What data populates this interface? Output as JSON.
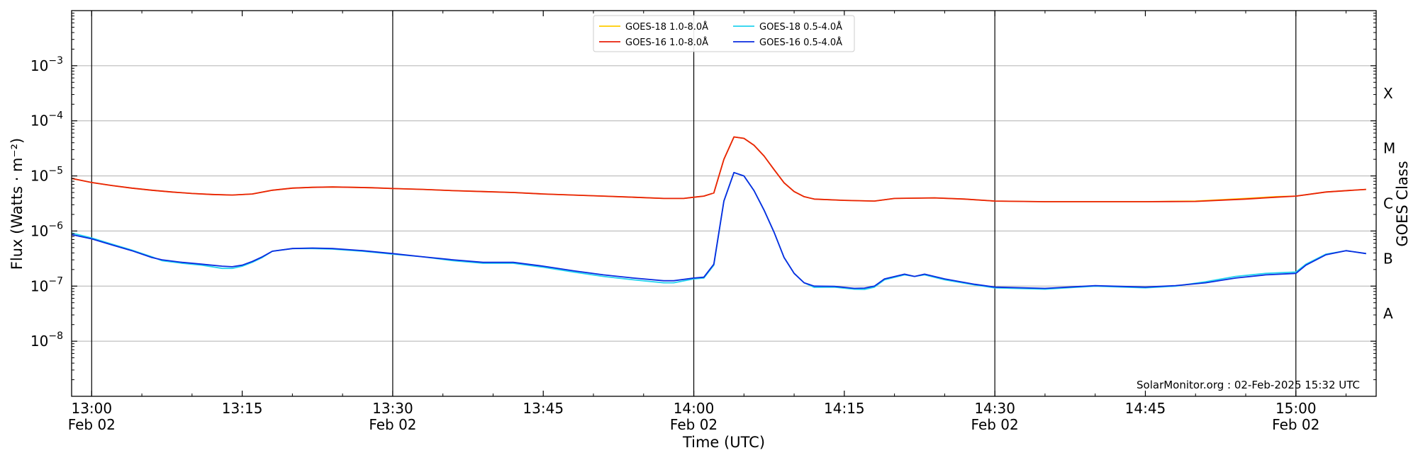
{
  "chart_data": {
    "type": "line",
    "title": "",
    "xlabel": "Time (UTC)",
    "ylabel": "Flux (Watts · m⁻²)",
    "y2label": "GOES Class",
    "yscale": "log",
    "ylim": [
      1e-09,
      0.01
    ],
    "xlim": [
      "12:58",
      "15:08"
    ],
    "grid": "horizontal",
    "legend_placement": "top-center",
    "x_ticks": [
      {
        "time": "13:00",
        "line1": "13:00",
        "line2": "Feb 02"
      },
      {
        "time": "13:15",
        "line1": "13:15",
        "line2": ""
      },
      {
        "time": "13:30",
        "line1": "13:30",
        "line2": "Feb 02"
      },
      {
        "time": "13:45",
        "line1": "13:45",
        "line2": ""
      },
      {
        "time": "14:00",
        "line1": "14:00",
        "line2": "Feb 02"
      },
      {
        "time": "14:15",
        "line1": "14:15",
        "line2": ""
      },
      {
        "time": "14:30",
        "line1": "14:30",
        "line2": "Feb 02"
      },
      {
        "time": "14:45",
        "line1": "14:45",
        "line2": ""
      },
      {
        "time": "15:00",
        "line1": "15:00",
        "line2": "Feb 02"
      }
    ],
    "vertical_lines": [
      "13:00",
      "13:30",
      "14:00",
      "14:30",
      "15:00"
    ],
    "y_ticks": [
      {
        "value": 1e-08,
        "base": "10",
        "exp": "−8"
      },
      {
        "value": 1e-07,
        "base": "10",
        "exp": "−7"
      },
      {
        "value": 1e-06,
        "base": "10",
        "exp": "−6"
      },
      {
        "value": 1e-05,
        "base": "10",
        "exp": "−5"
      },
      {
        "value": 0.0001,
        "base": "10",
        "exp": "−4"
      },
      {
        "value": 0.001,
        "base": "10",
        "exp": "−3"
      }
    ],
    "goes_classes": [
      {
        "label": "A",
        "value": 3.16e-08
      },
      {
        "label": "B",
        "value": 3.16e-07
      },
      {
        "label": "C",
        "value": 3.16e-06
      },
      {
        "label": "M",
        "value": 3.16e-05
      },
      {
        "label": "X",
        "value": 0.000316
      }
    ],
    "annotation": "SolarMonitor.org : 02-Feb-2025 15:32 UTC",
    "series": [
      {
        "name": "GOES-18 1.0-8.0Å",
        "color": "#ffcc00",
        "points": [
          [
            "12:58",
            9e-06
          ],
          [
            "13:00",
            7.6e-06
          ],
          [
            "13:02",
            6.7e-06
          ],
          [
            "13:04",
            6e-06
          ],
          [
            "13:06",
            5.5e-06
          ],
          [
            "13:08",
            5.1e-06
          ],
          [
            "13:10",
            4.8e-06
          ],
          [
            "13:12",
            4.6e-06
          ],
          [
            "13:14",
            4.5e-06
          ],
          [
            "13:16",
            4.7e-06
          ],
          [
            "13:18",
            5.5e-06
          ],
          [
            "13:20",
            6e-06
          ],
          [
            "13:22",
            6.2e-06
          ],
          [
            "13:24",
            6.3e-06
          ],
          [
            "13:26",
            6.2e-06
          ],
          [
            "13:28",
            6.1e-06
          ],
          [
            "13:30",
            5.9e-06
          ],
          [
            "13:33",
            5.7e-06
          ],
          [
            "13:36",
            5.4e-06
          ],
          [
            "13:39",
            5.2e-06
          ],
          [
            "13:42",
            5e-06
          ],
          [
            "13:45",
            4.7e-06
          ],
          [
            "13:48",
            4.5e-06
          ],
          [
            "13:51",
            4.3e-06
          ],
          [
            "13:54",
            4.1e-06
          ],
          [
            "13:57",
            3.9e-06
          ],
          [
            "13:59",
            3.9e-06
          ],
          [
            "14:00",
            4.1e-06
          ],
          [
            "14:01",
            4.3e-06
          ],
          [
            "14:02",
            4.9e-06
          ],
          [
            "14:03",
            2e-05
          ],
          [
            "14:04",
            5.1e-05
          ],
          [
            "14:05",
            4.8e-05
          ],
          [
            "14:06",
            3.6e-05
          ],
          [
            "14:07",
            2.3e-05
          ],
          [
            "14:08",
            1.3e-05
          ],
          [
            "14:09",
            7.5e-06
          ],
          [
            "14:10",
            5.2e-06
          ],
          [
            "14:11",
            4.2e-06
          ],
          [
            "14:12",
            3.8e-06
          ],
          [
            "14:15",
            3.6e-06
          ],
          [
            "14:18",
            3.5e-06
          ],
          [
            "14:20",
            3.9e-06
          ],
          [
            "14:24",
            4e-06
          ],
          [
            "14:27",
            3.8e-06
          ],
          [
            "14:30",
            3.5e-06
          ],
          [
            "14:35",
            3.4e-06
          ],
          [
            "14:40",
            3.4e-06
          ],
          [
            "14:45",
            3.4e-06
          ],
          [
            "14:50",
            3.5e-06
          ],
          [
            "14:55",
            3.9e-06
          ],
          [
            "14:58",
            4.2e-06
          ],
          [
            "15:00",
            4.3e-06
          ],
          [
            "15:03",
            5.1e-06
          ],
          [
            "15:07",
            5.7e-06
          ]
        ]
      },
      {
        "name": "GOES-16 1.0-8.0Å",
        "color": "#e8210a",
        "points": [
          [
            "12:58",
            9e-06
          ],
          [
            "13:00",
            7.6e-06
          ],
          [
            "13:02",
            6.7e-06
          ],
          [
            "13:04",
            6e-06
          ],
          [
            "13:06",
            5.5e-06
          ],
          [
            "13:08",
            5.1e-06
          ],
          [
            "13:10",
            4.8e-06
          ],
          [
            "13:12",
            4.6e-06
          ],
          [
            "13:14",
            4.5e-06
          ],
          [
            "13:16",
            4.7e-06
          ],
          [
            "13:18",
            5.5e-06
          ],
          [
            "13:20",
            6e-06
          ],
          [
            "13:22",
            6.2e-06
          ],
          [
            "13:24",
            6.3e-06
          ],
          [
            "13:26",
            6.2e-06
          ],
          [
            "13:28",
            6.1e-06
          ],
          [
            "13:30",
            5.9e-06
          ],
          [
            "13:33",
            5.7e-06
          ],
          [
            "13:36",
            5.4e-06
          ],
          [
            "13:39",
            5.2e-06
          ],
          [
            "13:42",
            5e-06
          ],
          [
            "13:45",
            4.7e-06
          ],
          [
            "13:48",
            4.5e-06
          ],
          [
            "13:51",
            4.3e-06
          ],
          [
            "13:54",
            4.1e-06
          ],
          [
            "13:57",
            3.9e-06
          ],
          [
            "13:59",
            3.9e-06
          ],
          [
            "14:00",
            4.1e-06
          ],
          [
            "14:01",
            4.3e-06
          ],
          [
            "14:02",
            4.9e-06
          ],
          [
            "14:03",
            2e-05
          ],
          [
            "14:04",
            5.1e-05
          ],
          [
            "14:05",
            4.8e-05
          ],
          [
            "14:06",
            3.6e-05
          ],
          [
            "14:07",
            2.3e-05
          ],
          [
            "14:08",
            1.3e-05
          ],
          [
            "14:09",
            7.5e-06
          ],
          [
            "14:10",
            5.2e-06
          ],
          [
            "14:11",
            4.2e-06
          ],
          [
            "14:12",
            3.8e-06
          ],
          [
            "14:15",
            3.6e-06
          ],
          [
            "14:18",
            3.5e-06
          ],
          [
            "14:20",
            3.9e-06
          ],
          [
            "14:24",
            4e-06
          ],
          [
            "14:27",
            3.8e-06
          ],
          [
            "14:30",
            3.5e-06
          ],
          [
            "14:35",
            3.4e-06
          ],
          [
            "14:40",
            3.4e-06
          ],
          [
            "14:45",
            3.4e-06
          ],
          [
            "14:50",
            3.45e-06
          ],
          [
            "14:55",
            3.8e-06
          ],
          [
            "14:58",
            4.1e-06
          ],
          [
            "15:00",
            4.3e-06
          ],
          [
            "15:03",
            5.1e-06
          ],
          [
            "15:07",
            5.7e-06
          ]
        ]
      },
      {
        "name": "GOES-18 0.5-4.0Å",
        "color": "#22d3ee",
        "points": [
          [
            "12:58",
            9.2e-07
          ],
          [
            "13:00",
            7.5e-07
          ],
          [
            "13:02",
            5.8e-07
          ],
          [
            "13:04",
            4.5e-07
          ],
          [
            "13:06",
            3.4e-07
          ],
          [
            "13:07",
            2.9e-07
          ],
          [
            "13:09",
            2.6e-07
          ],
          [
            "13:11",
            2.4e-07
          ],
          [
            "13:13",
            2.1e-07
          ],
          [
            "13:14",
            2.1e-07
          ],
          [
            "13:15",
            2.3e-07
          ],
          [
            "13:16",
            2.7e-07
          ],
          [
            "13:17",
            3.3e-07
          ],
          [
            "13:18",
            4.3e-07
          ],
          [
            "13:20",
            4.8e-07
          ],
          [
            "13:22",
            4.8e-07
          ],
          [
            "13:24",
            4.7e-07
          ],
          [
            "13:27",
            4.3e-07
          ],
          [
            "13:30",
            3.8e-07
          ],
          [
            "13:33",
            3.4e-07
          ],
          [
            "13:36",
            2.9e-07
          ],
          [
            "13:39",
            2.6e-07
          ],
          [
            "13:42",
            2.6e-07
          ],
          [
            "13:45",
            2.2e-07
          ],
          [
            "13:48",
            1.8e-07
          ],
          [
            "13:51",
            1.5e-07
          ],
          [
            "13:54",
            1.3e-07
          ],
          [
            "13:57",
            1.15e-07
          ],
          [
            "13:58",
            1.15e-07
          ],
          [
            "14:00",
            1.35e-07
          ],
          [
            "14:01",
            1.4e-07
          ],
          [
            "14:02",
            2.4e-07
          ],
          [
            "14:03",
            3.5e-06
          ],
          [
            "14:04",
            1.15e-05
          ],
          [
            "14:05",
            1e-05
          ],
          [
            "14:06",
            5.4e-06
          ],
          [
            "14:07",
            2.4e-06
          ],
          [
            "14:08",
            9.5e-07
          ],
          [
            "14:09",
            3.3e-07
          ],
          [
            "14:10",
            1.7e-07
          ],
          [
            "14:11",
            1.15e-07
          ],
          [
            "14:12",
            9.5e-08
          ],
          [
            "14:14",
            9.6e-08
          ],
          [
            "14:16",
            8.8e-08
          ],
          [
            "14:17",
            8.7e-08
          ],
          [
            "14:18",
            9.6e-08
          ],
          [
            "14:19",
            1.3e-07
          ],
          [
            "14:21",
            1.6e-07
          ],
          [
            "14:22",
            1.5e-07
          ],
          [
            "14:23",
            1.6e-07
          ],
          [
            "14:25",
            1.3e-07
          ],
          [
            "14:28",
            1.05e-07
          ],
          [
            "14:30",
            9.3e-08
          ],
          [
            "14:35",
            8.8e-08
          ],
          [
            "14:40",
            1e-07
          ],
          [
            "14:45",
            9.3e-08
          ],
          [
            "14:48",
            1e-07
          ],
          [
            "14:51",
            1.2e-07
          ],
          [
            "14:54",
            1.5e-07
          ],
          [
            "14:57",
            1.7e-07
          ],
          [
            "15:00",
            1.8e-07
          ],
          [
            "15:01",
            2.5e-07
          ],
          [
            "15:03",
            3.8e-07
          ],
          [
            "15:05",
            4.4e-07
          ],
          [
            "15:07",
            3.9e-07
          ]
        ]
      },
      {
        "name": "GOES-16 0.5-4.0Å",
        "color": "#0a2be0",
        "points": [
          [
            "12:58",
            8.6e-07
          ],
          [
            "13:00",
            7.2e-07
          ],
          [
            "13:02",
            5.6e-07
          ],
          [
            "13:04",
            4.4e-07
          ],
          [
            "13:06",
            3.3e-07
          ],
          [
            "13:07",
            3e-07
          ],
          [
            "13:09",
            2.7e-07
          ],
          [
            "13:11",
            2.5e-07
          ],
          [
            "13:13",
            2.3e-07
          ],
          [
            "13:14",
            2.25e-07
          ],
          [
            "13:15",
            2.4e-07
          ],
          [
            "13:16",
            2.8e-07
          ],
          [
            "13:17",
            3.4e-07
          ],
          [
            "13:18",
            4.3e-07
          ],
          [
            "13:20",
            4.8e-07
          ],
          [
            "13:22",
            4.9e-07
          ],
          [
            "13:24",
            4.8e-07
          ],
          [
            "13:27",
            4.4e-07
          ],
          [
            "13:30",
            3.9e-07
          ],
          [
            "13:33",
            3.4e-07
          ],
          [
            "13:36",
            3e-07
          ],
          [
            "13:39",
            2.7e-07
          ],
          [
            "13:42",
            2.7e-07
          ],
          [
            "13:45",
            2.3e-07
          ],
          [
            "13:48",
            1.9e-07
          ],
          [
            "13:51",
            1.6e-07
          ],
          [
            "13:54",
            1.4e-07
          ],
          [
            "13:57",
            1.25e-07
          ],
          [
            "13:58",
            1.25e-07
          ],
          [
            "14:00",
            1.4e-07
          ],
          [
            "14:01",
            1.45e-07
          ],
          [
            "14:02",
            2.5e-07
          ],
          [
            "14:03",
            3.5e-06
          ],
          [
            "14:04",
            1.15e-05
          ],
          [
            "14:05",
            1e-05
          ],
          [
            "14:06",
            5.4e-06
          ],
          [
            "14:07",
            2.4e-06
          ],
          [
            "14:08",
            9.5e-07
          ],
          [
            "14:09",
            3.3e-07
          ],
          [
            "14:10",
            1.7e-07
          ],
          [
            "14:11",
            1.15e-07
          ],
          [
            "14:12",
            1e-07
          ],
          [
            "14:14",
            9.9e-08
          ],
          [
            "14:16",
            9.1e-08
          ],
          [
            "14:17",
            9.2e-08
          ],
          [
            "14:18",
            1e-07
          ],
          [
            "14:19",
            1.35e-07
          ],
          [
            "14:21",
            1.65e-07
          ],
          [
            "14:22",
            1.5e-07
          ],
          [
            "14:23",
            1.65e-07
          ],
          [
            "14:25",
            1.35e-07
          ],
          [
            "14:28",
            1.08e-07
          ],
          [
            "14:30",
            9.6e-08
          ],
          [
            "14:35",
            9.1e-08
          ],
          [
            "14:40",
            1.02e-07
          ],
          [
            "14:45",
            9.6e-08
          ],
          [
            "14:48",
            1.02e-07
          ],
          [
            "14:51",
            1.15e-07
          ],
          [
            "14:54",
            1.4e-07
          ],
          [
            "14:57",
            1.6e-07
          ],
          [
            "15:00",
            1.7e-07
          ],
          [
            "15:01",
            2.4e-07
          ],
          [
            "15:03",
            3.7e-07
          ],
          [
            "15:05",
            4.4e-07
          ],
          [
            "15:07",
            3.9e-07
          ]
        ]
      }
    ]
  }
}
